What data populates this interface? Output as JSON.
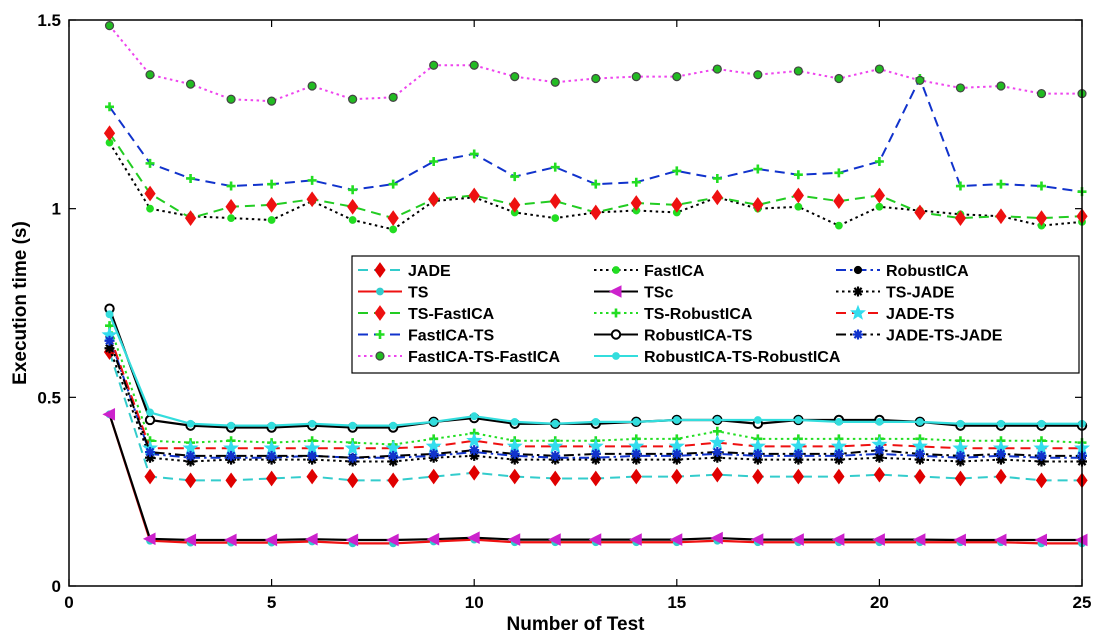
{
  "chart_data": {
    "type": "line",
    "xlabel": "Number of Test",
    "ylabel": "Execution time (s)",
    "xlim": [
      0,
      25
    ],
    "ylim": [
      0,
      1.5
    ],
    "xticks": [
      0,
      5,
      10,
      15,
      20,
      25
    ],
    "yticks": [
      0,
      0.5,
      1,
      1.5
    ],
    "x_tick_labels": [
      "0",
      "5",
      "10",
      "15",
      "20",
      "25"
    ],
    "y_tick_labels": [
      "0",
      "0.5",
      "1",
      "1.5"
    ],
    "grid": false,
    "legend_position": "center-right",
    "x": [
      1,
      2,
      3,
      4,
      5,
      6,
      7,
      8,
      9,
      10,
      11,
      12,
      13,
      14,
      15,
      16,
      17,
      18,
      19,
      20,
      21,
      22,
      23,
      24,
      25
    ],
    "series": [
      {
        "name": "JADE",
        "color": "#33cccc",
        "dash": "dash",
        "marker": "diamond",
        "marker_color": "#e00000",
        "values": [
          0.62,
          0.29,
          0.28,
          0.28,
          0.285,
          0.29,
          0.28,
          0.28,
          0.29,
          0.3,
          0.29,
          0.285,
          0.285,
          0.29,
          0.29,
          0.295,
          0.29,
          0.29,
          0.29,
          0.295,
          0.29,
          0.285,
          0.29,
          0.28,
          0.28
        ]
      },
      {
        "name": "FastICA",
        "color": "#000000",
        "dash": "dot",
        "marker": "circle-small",
        "marker_color": "#22dd22",
        "values": [
          1.175,
          1.0,
          0.98,
          0.975,
          0.97,
          1.02,
          0.97,
          0.945,
          1.02,
          1.03,
          0.99,
          0.975,
          0.99,
          0.995,
          0.99,
          1.03,
          1.0,
          1.005,
          0.955,
          1.005,
          0.995,
          0.985,
          0.98,
          0.955,
          0.965
        ]
      },
      {
        "name": "RobustICA",
        "color": "#1133cc",
        "dash": "dashdot",
        "marker": "circle-filled",
        "marker_color": "#000000",
        "values": [
          0.66,
          0.35,
          0.34,
          0.34,
          0.34,
          0.345,
          0.34,
          0.34,
          0.345,
          0.355,
          0.345,
          0.34,
          0.34,
          0.345,
          0.345,
          0.35,
          0.345,
          0.345,
          0.345,
          0.35,
          0.345,
          0.34,
          0.345,
          0.34,
          0.34
        ]
      },
      {
        "name": "TS",
        "color": "#ee1111",
        "dash": "solid",
        "marker": "circle-small",
        "marker_color": "#33cccc",
        "values": [
          0.455,
          0.12,
          0.115,
          0.115,
          0.115,
          0.118,
          0.113,
          0.113,
          0.118,
          0.123,
          0.116,
          0.116,
          0.116,
          0.116,
          0.116,
          0.12,
          0.116,
          0.116,
          0.116,
          0.116,
          0.116,
          0.116,
          0.116,
          0.113,
          0.113
        ]
      },
      {
        "name": "TSc",
        "color": "#000000",
        "dash": "solid",
        "marker": "triangle-left",
        "marker_color": "#cc22cc",
        "values": [
          0.455,
          0.125,
          0.122,
          0.122,
          0.122,
          0.124,
          0.122,
          0.122,
          0.124,
          0.128,
          0.123,
          0.123,
          0.123,
          0.123,
          0.123,
          0.127,
          0.123,
          0.123,
          0.123,
          0.123,
          0.123,
          0.122,
          0.122,
          0.122,
          0.122
        ]
      },
      {
        "name": "TS-JADE",
        "color": "#000000",
        "dash": "dot",
        "marker": "star",
        "marker_color": "#000000",
        "values": [
          0.63,
          0.34,
          0.33,
          0.335,
          0.335,
          0.335,
          0.33,
          0.33,
          0.34,
          0.345,
          0.335,
          0.335,
          0.335,
          0.335,
          0.335,
          0.34,
          0.335,
          0.335,
          0.335,
          0.34,
          0.335,
          0.33,
          0.335,
          0.33,
          0.33
        ]
      },
      {
        "name": "TS-FastICA",
        "color": "#22cc22",
        "dash": "dash",
        "marker": "diamond",
        "marker_color": "#ee1111",
        "values": [
          1.2,
          1.04,
          0.975,
          1.005,
          1.01,
          1.025,
          1.005,
          0.975,
          1.025,
          1.035,
          1.01,
          1.02,
          0.99,
          1.015,
          1.01,
          1.03,
          1.01,
          1.035,
          1.02,
          1.035,
          0.99,
          0.975,
          0.98,
          0.975,
          0.98
        ]
      },
      {
        "name": "TS-RobustICA",
        "color": "#22dd22",
        "dash": "dot",
        "marker": "plus",
        "marker_color": "#22dd22",
        "values": [
          0.69,
          0.385,
          0.38,
          0.385,
          0.38,
          0.385,
          0.38,
          0.375,
          0.39,
          0.405,
          0.385,
          0.385,
          0.385,
          0.39,
          0.39,
          0.41,
          0.39,
          0.39,
          0.39,
          0.39,
          0.39,
          0.385,
          0.385,
          0.385,
          0.38
        ]
      },
      {
        "name": "JADE-TS",
        "color": "#ee1111",
        "dash": "dash",
        "marker": "pentagram",
        "marker_color": "#33ddee",
        "values": [
          0.665,
          0.365,
          0.365,
          0.365,
          0.365,
          0.365,
          0.365,
          0.365,
          0.37,
          0.385,
          0.37,
          0.37,
          0.37,
          0.37,
          0.37,
          0.38,
          0.37,
          0.37,
          0.37,
          0.375,
          0.37,
          0.365,
          0.365,
          0.365,
          0.365
        ]
      },
      {
        "name": "FastICA-TS",
        "color": "#1133cc",
        "dash": "dash",
        "marker": "plus",
        "marker_color": "#22dd22",
        "values": [
          1.27,
          1.12,
          1.08,
          1.06,
          1.065,
          1.075,
          1.05,
          1.065,
          1.125,
          1.145,
          1.085,
          1.11,
          1.065,
          1.07,
          1.1,
          1.08,
          1.105,
          1.09,
          1.095,
          1.125,
          1.345,
          1.06,
          1.065,
          1.06,
          1.045
        ]
      },
      {
        "name": "RobustICA-TS",
        "color": "#000000",
        "dash": "solid",
        "marker": "circle-open",
        "marker_color": "#000000",
        "values": [
          0.735,
          0.44,
          0.425,
          0.42,
          0.42,
          0.425,
          0.42,
          0.42,
          0.435,
          0.445,
          0.43,
          0.43,
          0.43,
          0.435,
          0.44,
          0.44,
          0.43,
          0.44,
          0.44,
          0.44,
          0.435,
          0.425,
          0.425,
          0.425,
          0.425
        ]
      },
      {
        "name": "JADE-TS-JADE",
        "color": "#000000",
        "dash": "dashdot",
        "marker": "star",
        "marker_color": "#1133cc",
        "values": [
          0.65,
          0.355,
          0.345,
          0.345,
          0.345,
          0.345,
          0.34,
          0.345,
          0.35,
          0.36,
          0.35,
          0.345,
          0.35,
          0.35,
          0.35,
          0.355,
          0.35,
          0.35,
          0.35,
          0.36,
          0.35,
          0.345,
          0.35,
          0.345,
          0.345
        ]
      },
      {
        "name": "FastICA-TS-FastICA",
        "color": "#ee44ee",
        "dash": "dot",
        "marker": "circle-ring",
        "marker_color": "#22bb22",
        "values": [
          1.485,
          1.355,
          1.33,
          1.29,
          1.285,
          1.325,
          1.29,
          1.295,
          1.38,
          1.38,
          1.35,
          1.335,
          1.345,
          1.35,
          1.35,
          1.37,
          1.355,
          1.365,
          1.345,
          1.37,
          1.34,
          1.32,
          1.325,
          1.305,
          1.305
        ]
      },
      {
        "name": "RobustICA-TS-RobustICA",
        "color": "#33dddd",
        "dash": "solid",
        "marker": "circle-small",
        "marker_color": "#33dddd",
        "values": [
          0.72,
          0.46,
          0.43,
          0.425,
          0.425,
          0.43,
          0.425,
          0.425,
          0.435,
          0.45,
          0.435,
          0.43,
          0.435,
          0.435,
          0.44,
          0.44,
          0.44,
          0.44,
          0.435,
          0.435,
          0.435,
          0.43,
          0.43,
          0.43,
          0.43
        ]
      }
    ]
  }
}
